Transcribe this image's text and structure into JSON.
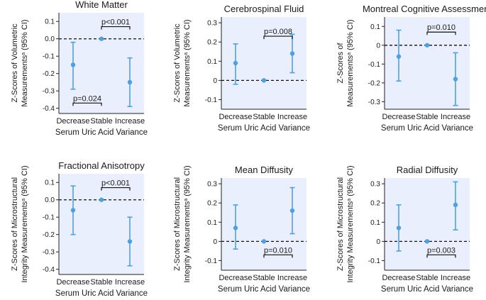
{
  "chart_data": [
    {
      "type": "errorbar",
      "title": "White Matter",
      "ylabel_lines": [
        {
          "pre": "Z-Scores of Volumetric",
          "sup": "",
          "post": ""
        },
        {
          "pre": "Measurements",
          "sup": "a",
          "post": " (95% CI)"
        }
      ],
      "xlabel": "Serum Uric Acid Variance",
      "categories": [
        "Decrease",
        "Stable",
        "Increase"
      ],
      "values": [
        -0.15,
        0.0,
        -0.25
      ],
      "ci_low": [
        -0.29,
        0.0,
        -0.39
      ],
      "ci_high": [
        -0.02,
        0.0,
        -0.11
      ],
      "ylim": [
        -0.43,
        0.15
      ],
      "yticks": [
        0.1,
        0.0,
        -0.1,
        -0.2,
        -0.3,
        -0.4
      ],
      "ytick_labels": [
        "0.1",
        "0.0",
        "-0.1",
        "-0.2",
        "-0.3",
        "-0.4"
      ],
      "zero_line": "dashed",
      "brackets": [
        {
          "from": 1,
          "to": 2,
          "y": 0.07,
          "label": "p<0.001",
          "side": "above"
        },
        {
          "from": 0,
          "to": 1,
          "y": -0.37,
          "label": "p=0.024",
          "side": "above"
        }
      ]
    },
    {
      "type": "errorbar",
      "title": "Cerebrospinal Fluid",
      "ylabel_lines": [
        {
          "pre": "Z-Scores of Volumetric",
          "sup": "",
          "post": ""
        },
        {
          "pre": "Measurements",
          "sup": "a",
          "post": " (95% CI)"
        }
      ],
      "xlabel": "Serum Uric Acid Variance",
      "categories": [
        "Decrease",
        "Stable",
        "Increase"
      ],
      "values": [
        0.09,
        0.0,
        0.14
      ],
      "ci_low": [
        -0.02,
        0.0,
        0.04
      ],
      "ci_high": [
        0.19,
        0.0,
        0.24
      ],
      "ylim": [
        -0.15,
        0.33
      ],
      "yticks": [
        0.3,
        0.2,
        0.1,
        0.0,
        -0.1
      ],
      "ytick_labels": [
        "0.3",
        "0.2",
        "0.1",
        "0",
        "-0.1"
      ],
      "zero_line": "dashed",
      "brackets": [
        {
          "from": 1,
          "to": 2,
          "y": 0.23,
          "label": "p=0.008",
          "side": "above"
        }
      ]
    },
    {
      "type": "errorbar",
      "title": "Montreal Cognitive Assessment",
      "ylabel_lines": [
        {
          "pre": "Z-Scores of",
          "sup": "",
          "post": ""
        },
        {
          "pre": "Measurements",
          "sup": "a",
          "post": " (95% CI)"
        }
      ],
      "xlabel": "Serum Uric Acid Variance",
      "categories": [
        "Decrease",
        "Stable",
        "Increase"
      ],
      "values": [
        -0.06,
        0.0,
        -0.18
      ],
      "ci_low": [
        -0.19,
        0.0,
        -0.32
      ],
      "ci_high": [
        0.08,
        0.0,
        -0.04
      ],
      "ylim": [
        -0.34,
        0.15
      ],
      "yticks": [
        0.1,
        0.0,
        -0.1,
        -0.2,
        -0.3
      ],
      "ytick_labels": [
        "0.1",
        "0",
        "-0.1",
        "-0.2",
        "-0.3"
      ],
      "zero_line": "dashed",
      "brackets": [
        {
          "from": 1,
          "to": 2,
          "y": 0.07,
          "label": "p=0.010",
          "side": "above"
        }
      ]
    },
    {
      "type": "errorbar",
      "title": "Fractional Anisotropy",
      "ylabel_lines": [
        {
          "pre": "Z-Scores of Microstructural",
          "sup": "",
          "post": ""
        },
        {
          "pre": "Integrity Measurements",
          "sup": "a",
          "post": " (95% CI)"
        }
      ],
      "xlabel": "Serum Uric Acid Variance",
      "categories": [
        "Decrease",
        "Stable",
        "Increase"
      ],
      "values": [
        -0.06,
        0.0,
        -0.24
      ],
      "ci_low": [
        -0.2,
        0.0,
        -0.38
      ],
      "ci_high": [
        0.08,
        0.0,
        -0.1
      ],
      "ylim": [
        -0.43,
        0.15
      ],
      "yticks": [
        0.1,
        0.0,
        -0.1,
        -0.2,
        -0.3,
        -0.4
      ],
      "ytick_labels": [
        "0.1",
        "0.0",
        "-0.1",
        "-0.2",
        "-0.3",
        "-0.4"
      ],
      "zero_line": "dashed",
      "brackets": [
        {
          "from": 1,
          "to": 2,
          "y": 0.07,
          "label": "p<0.001",
          "side": "above"
        }
      ]
    },
    {
      "type": "errorbar",
      "title": "Mean Diffusity",
      "ylabel_lines": [
        {
          "pre": "Z-Scores of Microstructural",
          "sup": "",
          "post": ""
        },
        {
          "pre": "Integrity Measurements",
          "sup": "a",
          "post": " (95% CI)"
        }
      ],
      "xlabel": "Serum Uric Acid Variance",
      "categories": [
        "Decrease",
        "Stable",
        "Increase"
      ],
      "values": [
        0.07,
        0.0,
        0.16
      ],
      "ci_low": [
        -0.04,
        0.0,
        0.04
      ],
      "ci_high": [
        0.19,
        0.0,
        0.28
      ],
      "ylim": [
        -0.15,
        0.33
      ],
      "yticks": [
        0.3,
        0.2,
        0.1,
        0.0,
        -0.1
      ],
      "ytick_labels": [
        "0.3",
        "0.2",
        "0.1",
        "0",
        "-0.1"
      ],
      "zero_line": "dashed",
      "brackets": [
        {
          "from": 1,
          "to": 2,
          "y": -0.07,
          "label": "p=0.010",
          "side": "above"
        }
      ]
    },
    {
      "type": "errorbar",
      "title": "Radial Diffusity",
      "ylabel_lines": [
        {
          "pre": "Z-Scores of Microstructural",
          "sup": "",
          "post": ""
        },
        {
          "pre": "Integrity Measurements",
          "sup": "a",
          "post": " (95% CI)"
        }
      ],
      "xlabel": "Serum Uric Acid Variance",
      "categories": [
        "Decrease",
        "Stable",
        "Increase"
      ],
      "values": [
        0.07,
        0.0,
        0.19
      ],
      "ci_low": [
        -0.05,
        0.0,
        0.06
      ],
      "ci_high": [
        0.19,
        0.0,
        0.31
      ],
      "ylim": [
        -0.15,
        0.33
      ],
      "yticks": [
        0.3,
        0.2,
        0.1,
        0.0,
        -0.1
      ],
      "ytick_labels": [
        "0.3",
        "0.2",
        "0.1",
        "0",
        "-0.1"
      ],
      "zero_line": "dashed",
      "brackets": [
        {
          "from": 1,
          "to": 2,
          "y": -0.07,
          "label": "p=0.003",
          "side": "above"
        }
      ]
    }
  ],
  "colors": {
    "plot_background": "#e9effc",
    "marker": "#4fa0df",
    "axis": "#222222"
  }
}
